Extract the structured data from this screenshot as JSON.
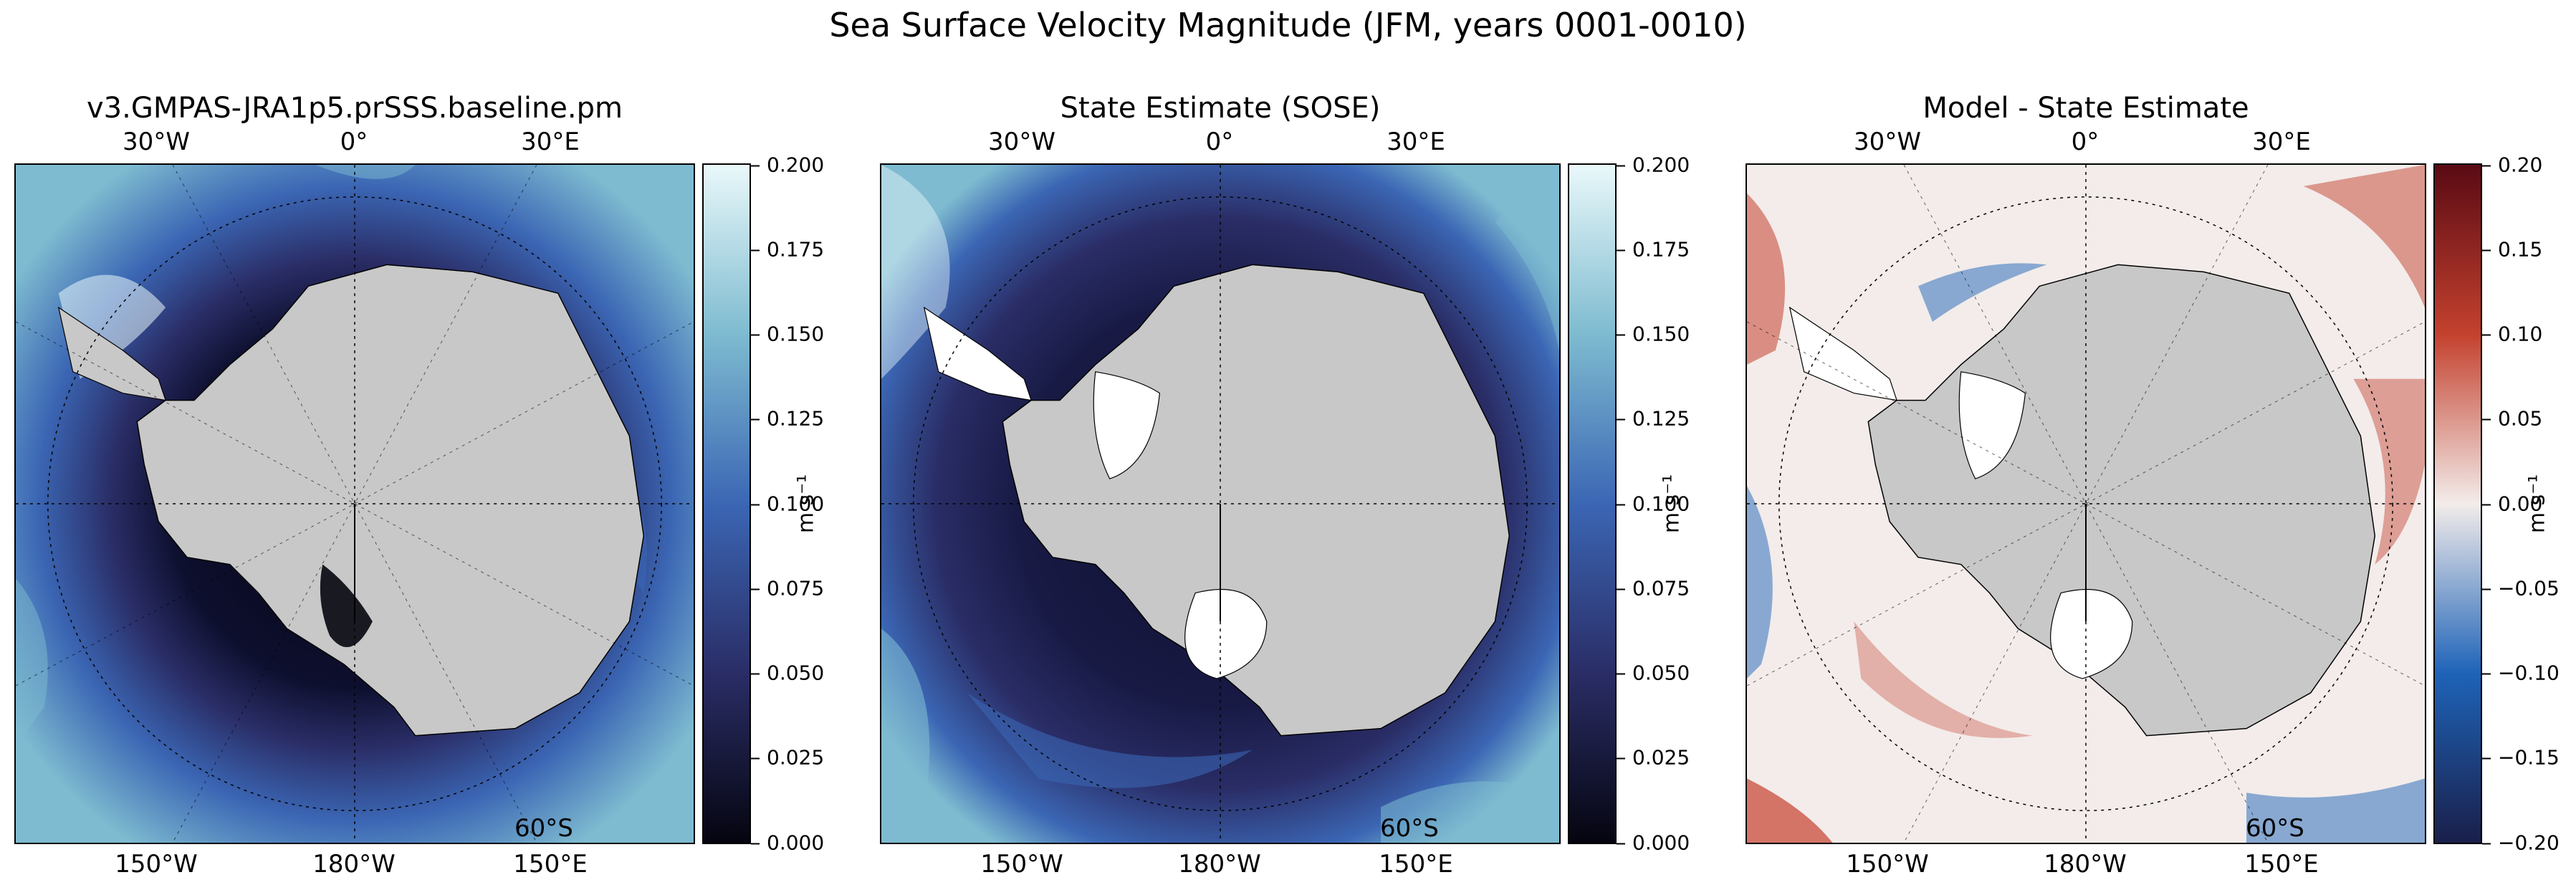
{
  "figure": {
    "title": "Sea Surface Velocity Magnitude (JFM, years 0001-0010)"
  },
  "panels": [
    {
      "title": "v3.GMPAS-JRA1p5.prSSS.baseline.pm",
      "colormap": "ice",
      "colors": [
        "#050510",
        "#2a2d66",
        "#3b66b4",
        "#7ebbd0",
        "#e9f8fa"
      ],
      "colorbar": {
        "ticks": [
          "0.200",
          "0.175",
          "0.150",
          "0.125",
          "0.100",
          "0.075",
          "0.050",
          "0.025",
          "0.000"
        ],
        "units": "m s⁻¹"
      }
    },
    {
      "title": "State Estimate (SOSE)",
      "colormap": "ice",
      "colors": [
        "#050510",
        "#2a2d66",
        "#3b66b4",
        "#7ebbd0",
        "#e9f8fa"
      ],
      "colorbar": {
        "ticks": [
          "0.200",
          "0.175",
          "0.150",
          "0.125",
          "0.100",
          "0.075",
          "0.050",
          "0.025",
          "0.000"
        ],
        "units": "m s⁻¹"
      }
    },
    {
      "title": "Model - State Estimate",
      "colormap": "balance",
      "colors": [
        "#1a1f4a",
        "#1e63b8",
        "#f3ecea",
        "#c4412e",
        "#5a0a14"
      ],
      "colorbar": {
        "ticks": [
          "0.20",
          "0.15",
          "0.10",
          "0.05",
          "0.00",
          "−0.05",
          "−0.10",
          "−0.15",
          "−0.20"
        ],
        "units": "m s⁻¹"
      }
    }
  ],
  "map_labels": {
    "top": [
      "30°W",
      "0°",
      "30°E"
    ],
    "bottom": [
      "150°W",
      "180°W",
      "150°E"
    ],
    "lat": "60°S"
  },
  "land_color": "#c8c8c8"
}
